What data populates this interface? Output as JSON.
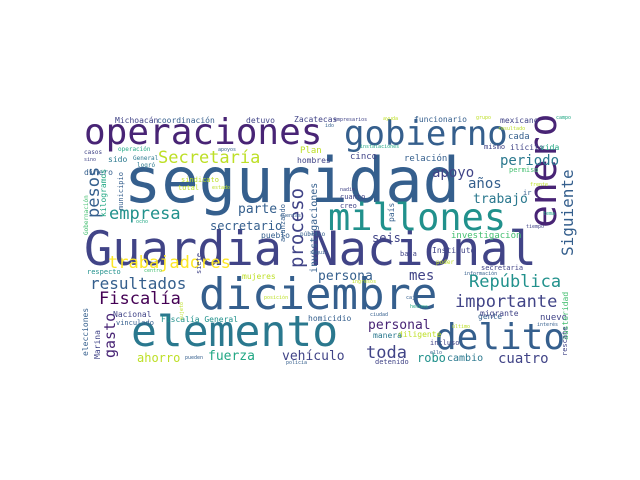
{
  "palette": {
    "c1": "#440154",
    "c2": "#482475",
    "c3": "#414487",
    "c4": "#355f8d",
    "c5": "#2a788e",
    "c6": "#21918c",
    "c7": "#22a884",
    "c8": "#44bf70",
    "c9": "#7ad151",
    "c10": "#bddf26",
    "c11": "#fde725"
  },
  "words": {
    "seguridad": "seguridad",
    "guardia_nacional": "Guardia Nacional",
    "elemento": "elemento",
    "diciembre": "diciembre",
    "operaciones": "operaciones",
    "gobierno": "gobierno",
    "millones": "millones",
    "enero": "enero",
    "delito": "delito",
    "secretaria": "Secretaría",
    "empresa": "empresa",
    "trabajadores": "trabajadores",
    "fiscalia": "Fiscalía",
    "resultados": "resultados",
    "proceso": "proceso",
    "siguiente": "Siguiente",
    "importante": "importante",
    "republica": "República",
    "toda": "toda",
    "cuatro": "cuatro",
    "personal": "personal",
    "mes": "mes",
    "persona": "persona",
    "apoyo": "apoyo",
    "periodo": "periodo",
    "anos": "años",
    "trabajo": "trabajo",
    "pesos": "pesos",
    "gasto": "gasto",
    "fuerza": "fuerza",
    "ahorro": "ahorro",
    "vehiculo": "vehículo",
    "robo": "robo",
    "cambio": "cambio",
    "parte": "parte",
    "secretario": "secretario",
    "seis": "seis",
    "investigacion": "investigación",
    "investigaciones": "investigaciones",
    "michoacan": "Michoacán",
    "coordinacion": "coordinación",
    "detuvo": "detuvo",
    "zacatecas": "Zacatecas",
    "funcionario": "funcionario",
    "mexicano": "mexicano",
    "cada": "cada",
    "ilicito": "ilícito",
    "mismo": "mismo",
    "vida": "vida",
    "plan": "Plan",
    "cinco": "cinco",
    "relacion": "relación",
    "sido": "sido",
    "hombres": "hombres",
    "dinero": "dinero",
    "kilogramos": "kilogramos",
    "sindicato": "sindicato",
    "total": "total",
    "cuanto": "cuanto",
    "creo": "creo",
    "instituto": "Instituto",
    "pueblo": "pueblo",
    "nuevo": "nuevo",
    "gente": "gente",
    "migrante": "migrante",
    "diligente": "diligente",
    "homicidio": "homicidio",
    "manera": "manera",
    "incluso": "incluso",
    "detenido": "detenido",
    "mujeres": "mujeres",
    "fiscalia_general": "Fiscalía General",
    "nacional": "Nacional",
    "vinculado": "vinculado",
    "elecciones": "elecciones",
    "marina": "Marina",
    "respecto": "respecto",
    "baja": "baja",
    "permiso": "permiso",
    "secretaria_lc": "secretaria",
    "austeridad": "austeridad",
    "rescate": "rescate",
    "siete": "siete",
    "municipio": "municipio",
    "mayor": "mayor",
    "publico": "público",
    "poder": "poder",
    "informacion": "información",
    "operacion": "operación",
    "general": "General",
    "logro": "logró",
    "casos": "casos",
    "sino": "sino",
    "ocho": "ocho",
    "nadie": "nadie",
    "tiempo": "tiempo",
    "ir": "ir",
    "policia": "policía",
    "pueden": "pueden",
    "centro": "centro",
    "empresarios": "empresarios",
    "grupo": "grupo",
    "campo": "campo",
    "resultado": "resultado",
    "pais": "país",
    "avanzado": "avanzando",
    "gobernacion": "Gobernación",
    "frente": "frente",
    "ido": "ido",
    "instalaciones": "instalaciones",
    "estado": "estado",
    "tema": "tema",
    "caja": "caja",
    "interes": "interés",
    "seguir": "seguir",
    "ultimo": "último",
    "cuentas": "cuentas",
    "ello": "ello",
    "sujeto": "sujeto",
    "hechos": "hechos",
    "posicion": "posición",
    "ingresos": "ingresos",
    "ayuda": "ayuda",
    "apoyos": "apoyos",
    "ciudad": "ciudad"
  }
}
